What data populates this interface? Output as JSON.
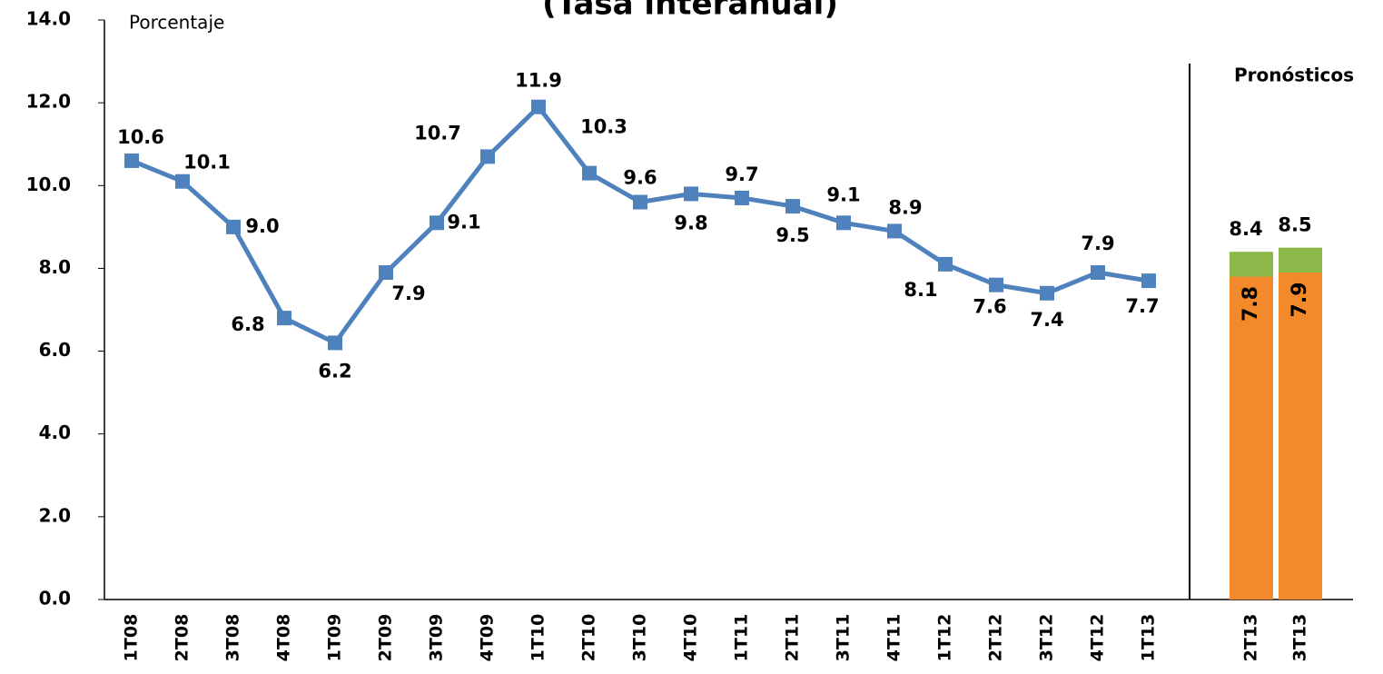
{
  "chart_data": [
    {
      "type": "line",
      "title": "(Tasa interanual)",
      "y_label": "Porcentaje",
      "categories": [
        "1T08",
        "2T08",
        "3T08",
        "4T08",
        "1T09",
        "2T09",
        "3T09",
        "4T09",
        "1T10",
        "2T10",
        "3T10",
        "4T10",
        "1T11",
        "2T11",
        "3T11",
        "4T11",
        "1T12",
        "2T12",
        "3T12",
        "4T12",
        "1T13"
      ],
      "values": [
        10.6,
        10.1,
        9.0,
        6.8,
        6.2,
        7.9,
        9.1,
        10.7,
        11.9,
        10.3,
        9.6,
        9.8,
        9.7,
        9.5,
        9.1,
        8.9,
        8.1,
        7.6,
        7.4,
        7.9,
        7.7
      ],
      "value_labels": [
        "10.6",
        "10.1",
        "9.0",
        "6.8",
        "6.2",
        "7.9",
        "9.1",
        "10.7",
        "11.9",
        "10.3",
        "9.6",
        "9.8",
        "9.7",
        "9.5",
        "9.1",
        "8.9",
        "8.1",
        "7.6",
        "7.4",
        "7.9",
        "7.7"
      ],
      "color": "#4f81bd",
      "ylim": [
        0,
        14
      ],
      "yticks": [
        {
          "value": 0,
          "label": "0.0"
        },
        {
          "value": 2,
          "label": "2.0"
        },
        {
          "value": 4,
          "label": "4.0"
        },
        {
          "value": 6,
          "label": "6.0"
        },
        {
          "value": 8,
          "label": "8.0"
        },
        {
          "value": 10,
          "label": "10.0"
        },
        {
          "value": 12,
          "label": "12.0"
        },
        {
          "value": 14,
          "label": "14.0"
        }
      ]
    },
    {
      "type": "stacked-bar",
      "annotation": "Pronósticos",
      "categories": [
        "2T13",
        "3T13"
      ],
      "series": [
        {
          "color": "#f28a2b",
          "values": [
            7.8,
            7.9
          ]
        },
        {
          "color": "#8cb84a",
          "values": [
            0.6,
            0.6
          ]
        }
      ],
      "totals": [
        8.4,
        8.5
      ]
    }
  ]
}
